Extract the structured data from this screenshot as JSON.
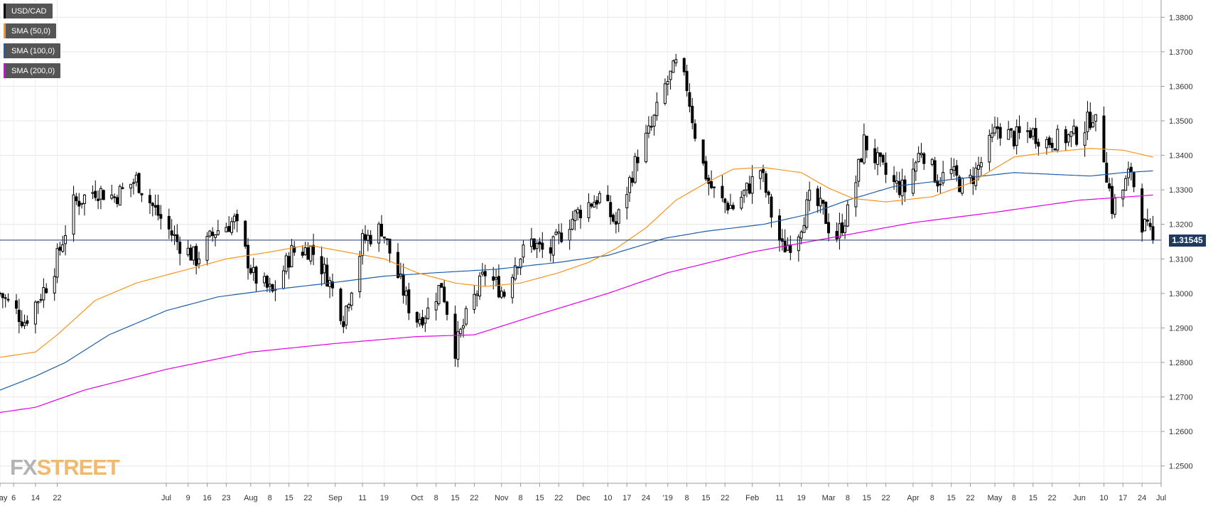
{
  "chart_data": {
    "type": "candlestick",
    "title": "",
    "symbol": "USD/CAD",
    "legend": {
      "placement": "top-left",
      "entries": [
        "USD/CAD",
        "SMA (50,0)",
        "SMA (100,0)",
        "SMA (200,0)"
      ]
    },
    "colors": {
      "up": "#ffffff",
      "down": "#000000",
      "sma50": "#f7941d",
      "sma100": "#1f5fa8",
      "sma200": "#e100e6",
      "last_line": "#1f3a5f"
    },
    "ylim": [
      1.245,
      1.385
    ],
    "y_ticks": [
      "1.2500",
      "1.2600",
      "1.2700",
      "1.2800",
      "1.2900",
      "1.3000",
      "1.3100",
      "1.3200",
      "1.3300",
      "1.3400",
      "1.3500",
      "1.3600",
      "1.3700",
      "1.3800"
    ],
    "x_range": [
      "2018-05-01",
      "2019-07-01"
    ],
    "x_ticks": [
      {
        "label": "May",
        "date": "2018-05-01"
      },
      {
        "label": "6",
        "date": "2018-05-06"
      },
      {
        "label": "14",
        "date": "2018-05-14"
      },
      {
        "label": "22",
        "date": "2018-05-22"
      },
      {
        "label": "Jul",
        "date": "2018-07-01"
      },
      {
        "label": "9",
        "date": "2018-07-09"
      },
      {
        "label": "16",
        "date": "2018-07-16"
      },
      {
        "label": "23",
        "date": "2018-07-23"
      },
      {
        "label": "Aug",
        "date": "2018-08-01"
      },
      {
        "label": "8",
        "date": "2018-08-08"
      },
      {
        "label": "15",
        "date": "2018-08-15"
      },
      {
        "label": "22",
        "date": "2018-08-22"
      },
      {
        "label": "Sep",
        "date": "2018-09-01"
      },
      {
        "label": "11",
        "date": "2018-09-11"
      },
      {
        "label": "19",
        "date": "2018-09-19"
      },
      {
        "label": "Oct",
        "date": "2018-10-01"
      },
      {
        "label": "8",
        "date": "2018-10-08"
      },
      {
        "label": "15",
        "date": "2018-10-15"
      },
      {
        "label": "22",
        "date": "2018-10-22"
      },
      {
        "label": "Nov",
        "date": "2018-11-01"
      },
      {
        "label": "8",
        "date": "2018-11-08"
      },
      {
        "label": "15",
        "date": "2018-11-15"
      },
      {
        "label": "22",
        "date": "2018-11-22"
      },
      {
        "label": "Dec",
        "date": "2018-12-01"
      },
      {
        "label": "10",
        "date": "2018-12-10"
      },
      {
        "label": "17",
        "date": "2018-12-17"
      },
      {
        "label": "24",
        "date": "2018-12-24"
      },
      {
        "label": "'19",
        "date": "2019-01-01"
      },
      {
        "label": "8",
        "date": "2019-01-08"
      },
      {
        "label": "15",
        "date": "2019-01-15"
      },
      {
        "label": "22",
        "date": "2019-01-22"
      },
      {
        "label": "Feb",
        "date": "2019-02-01"
      },
      {
        "label": "11",
        "date": "2019-02-11"
      },
      {
        "label": "19",
        "date": "2019-02-19"
      },
      {
        "label": "Mar",
        "date": "2019-03-01"
      },
      {
        "label": "8",
        "date": "2019-03-08"
      },
      {
        "label": "15",
        "date": "2019-03-15"
      },
      {
        "label": "22",
        "date": "2019-03-22"
      },
      {
        "label": "Apr",
        "date": "2019-04-01"
      },
      {
        "label": "8",
        "date": "2019-04-08"
      },
      {
        "label": "15",
        "date": "2019-04-15"
      },
      {
        "label": "22",
        "date": "2019-04-22"
      },
      {
        "label": "May",
        "date": "2019-05-01"
      },
      {
        "label": "8",
        "date": "2019-05-08"
      },
      {
        "label": "15",
        "date": "2019-05-15"
      },
      {
        "label": "22",
        "date": "2019-05-22"
      },
      {
        "label": "Jun",
        "date": "2019-06-01"
      },
      {
        "label": "10",
        "date": "2019-06-10"
      },
      {
        "label": "17",
        "date": "2019-06-17"
      },
      {
        "label": "24",
        "date": "2019-06-24"
      },
      {
        "label": "Jul",
        "date": "2019-07-01"
      }
    ],
    "last_price": {
      "value": 1.31545,
      "label": "1.31545"
    },
    "price_knots": [
      {
        "date": "2018-05-01",
        "close": 1.3
      },
      {
        "date": "2018-05-10",
        "close": 1.292
      },
      {
        "date": "2018-05-20",
        "close": 1.305
      },
      {
        "date": "2018-05-28",
        "close": 1.326
      },
      {
        "date": "2018-06-05",
        "close": 1.33
      },
      {
        "date": "2018-06-12",
        "close": 1.328
      },
      {
        "date": "2018-06-20",
        "close": 1.333
      },
      {
        "date": "2018-06-27",
        "close": 1.324
      },
      {
        "date": "2018-07-05",
        "close": 1.315
      },
      {
        "date": "2018-07-12",
        "close": 1.31
      },
      {
        "date": "2018-07-19",
        "close": 1.318
      },
      {
        "date": "2018-07-26",
        "close": 1.321
      },
      {
        "date": "2018-08-02",
        "close": 1.305
      },
      {
        "date": "2018-08-09",
        "close": 1.3
      },
      {
        "date": "2018-08-16",
        "close": 1.312
      },
      {
        "date": "2018-08-23",
        "close": 1.313
      },
      {
        "date": "2018-08-29",
        "close": 1.305
      },
      {
        "date": "2018-09-04",
        "close": 1.293
      },
      {
        "date": "2018-09-11",
        "close": 1.315
      },
      {
        "date": "2018-09-18",
        "close": 1.319
      },
      {
        "date": "2018-09-24",
        "close": 1.305
      },
      {
        "date": "2018-09-30",
        "close": 1.292
      },
      {
        "date": "2018-10-05",
        "close": 1.295
      },
      {
        "date": "2018-10-10",
        "close": 1.303
      },
      {
        "date": "2018-10-15",
        "close": 1.284
      },
      {
        "date": "2018-10-20",
        "close": 1.295
      },
      {
        "date": "2018-10-26",
        "close": 1.306
      },
      {
        "date": "2018-11-02",
        "close": 1.3
      },
      {
        "date": "2018-11-06",
        "close": 1.309
      },
      {
        "date": "2018-11-12",
        "close": 1.315
      },
      {
        "date": "2018-11-18",
        "close": 1.311
      },
      {
        "date": "2018-11-25",
        "close": 1.32
      },
      {
        "date": "2018-12-01",
        "close": 1.325
      },
      {
        "date": "2018-12-07",
        "close": 1.328
      },
      {
        "date": "2018-12-13",
        "close": 1.32
      },
      {
        "date": "2018-12-17",
        "close": 1.33
      },
      {
        "date": "2018-12-21",
        "close": 1.34
      },
      {
        "date": "2018-12-26",
        "close": 1.348
      },
      {
        "date": "2018-12-31",
        "close": 1.36
      },
      {
        "date": "2019-01-04",
        "close": 1.366
      },
      {
        "date": "2019-01-08",
        "close": 1.36
      },
      {
        "date": "2019-01-12",
        "close": 1.342
      },
      {
        "date": "2019-01-16",
        "close": 1.332
      },
      {
        "date": "2019-01-20",
        "close": 1.327
      },
      {
        "date": "2019-01-25",
        "close": 1.325
      },
      {
        "date": "2019-01-30",
        "close": 1.33
      },
      {
        "date": "2019-02-04",
        "close": 1.336
      },
      {
        "date": "2019-02-08",
        "close": 1.323
      },
      {
        "date": "2019-02-12",
        "close": 1.313
      },
      {
        "date": "2019-02-17",
        "close": 1.316
      },
      {
        "date": "2019-02-22",
        "close": 1.327
      },
      {
        "date": "2019-02-27",
        "close": 1.324
      },
      {
        "date": "2019-03-03",
        "close": 1.315
      },
      {
        "date": "2019-03-09",
        "close": 1.325
      },
      {
        "date": "2019-03-14",
        "close": 1.344
      },
      {
        "date": "2019-03-19",
        "close": 1.338
      },
      {
        "date": "2019-03-24",
        "close": 1.332
      },
      {
        "date": "2019-03-29",
        "close": 1.33
      },
      {
        "date": "2019-04-04",
        "close": 1.342
      },
      {
        "date": "2019-04-10",
        "close": 1.333
      },
      {
        "date": "2019-04-15",
        "close": 1.335
      },
      {
        "date": "2019-04-20",
        "close": 1.33
      },
      {
        "date": "2019-04-26",
        "close": 1.338
      },
      {
        "date": "2019-05-02",
        "close": 1.348
      },
      {
        "date": "2019-05-08",
        "close": 1.345
      },
      {
        "date": "2019-05-14",
        "close": 1.347
      },
      {
        "date": "2019-05-20",
        "close": 1.344
      },
      {
        "date": "2019-05-26",
        "close": 1.345
      },
      {
        "date": "2019-06-01",
        "close": 1.346
      },
      {
        "date": "2019-06-06",
        "close": 1.352
      },
      {
        "date": "2019-06-10",
        "close": 1.34
      },
      {
        "date": "2019-06-13",
        "close": 1.325
      },
      {
        "date": "2019-06-17",
        "close": 1.33
      },
      {
        "date": "2019-06-20",
        "close": 1.336
      },
      {
        "date": "2019-06-23",
        "close": 1.322
      },
      {
        "date": "2019-06-26",
        "close": 1.318
      },
      {
        "date": "2019-06-28",
        "close": 1.3155
      }
    ],
    "sma50_knots": [
      {
        "date": "2018-05-01",
        "value": 1.2815
      },
      {
        "date": "2018-05-14",
        "value": 1.283
      },
      {
        "date": "2018-05-22",
        "value": 1.288
      },
      {
        "date": "2018-06-05",
        "value": 1.298
      },
      {
        "date": "2018-06-20",
        "value": 1.303
      },
      {
        "date": "2018-07-09",
        "value": 1.307
      },
      {
        "date": "2018-07-23",
        "value": 1.31
      },
      {
        "date": "2018-08-08",
        "value": 1.312
      },
      {
        "date": "2018-08-22",
        "value": 1.314
      },
      {
        "date": "2018-09-05",
        "value": 1.312
      },
      {
        "date": "2018-09-19",
        "value": 1.31
      },
      {
        "date": "2018-10-01",
        "value": 1.306
      },
      {
        "date": "2018-10-15",
        "value": 1.303
      },
      {
        "date": "2018-10-26",
        "value": 1.302
      },
      {
        "date": "2018-11-08",
        "value": 1.303
      },
      {
        "date": "2018-11-22",
        "value": 1.306
      },
      {
        "date": "2018-12-03",
        "value": 1.309
      },
      {
        "date": "2018-12-13",
        "value": 1.313
      },
      {
        "date": "2018-12-24",
        "value": 1.319
      },
      {
        "date": "2019-01-04",
        "value": 1.327
      },
      {
        "date": "2019-01-15",
        "value": 1.332
      },
      {
        "date": "2019-01-25",
        "value": 1.336
      },
      {
        "date": "2019-02-05",
        "value": 1.3365
      },
      {
        "date": "2019-02-19",
        "value": 1.335
      },
      {
        "date": "2019-03-01",
        "value": 1.3305
      },
      {
        "date": "2019-03-10",
        "value": 1.3275
      },
      {
        "date": "2019-03-22",
        "value": 1.3265
      },
      {
        "date": "2019-04-08",
        "value": 1.328
      },
      {
        "date": "2019-04-22",
        "value": 1.332
      },
      {
        "date": "2019-05-08",
        "value": 1.3395
      },
      {
        "date": "2019-05-22",
        "value": 1.341
      },
      {
        "date": "2019-06-05",
        "value": 1.342
      },
      {
        "date": "2019-06-17",
        "value": 1.3415
      },
      {
        "date": "2019-06-28",
        "value": 1.3395
      }
    ],
    "sma100_knots": [
      {
        "date": "2018-05-01",
        "value": 1.272
      },
      {
        "date": "2018-05-14",
        "value": 1.276
      },
      {
        "date": "2018-05-25",
        "value": 1.28
      },
      {
        "date": "2018-06-10",
        "value": 1.288
      },
      {
        "date": "2018-07-01",
        "value": 1.295
      },
      {
        "date": "2018-07-20",
        "value": 1.299
      },
      {
        "date": "2018-08-08",
        "value": 1.301
      },
      {
        "date": "2018-08-30",
        "value": 1.303
      },
      {
        "date": "2018-09-19",
        "value": 1.305
      },
      {
        "date": "2018-10-08",
        "value": 1.306
      },
      {
        "date": "2018-10-30",
        "value": 1.307
      },
      {
        "date": "2018-11-22",
        "value": 1.309
      },
      {
        "date": "2018-12-10",
        "value": 1.311
      },
      {
        "date": "2018-12-31",
        "value": 1.316
      },
      {
        "date": "2019-01-15",
        "value": 1.318
      },
      {
        "date": "2019-02-05",
        "value": 1.32
      },
      {
        "date": "2019-02-22",
        "value": 1.323
      },
      {
        "date": "2019-03-08",
        "value": 1.327
      },
      {
        "date": "2019-03-25",
        "value": 1.331
      },
      {
        "date": "2019-04-15",
        "value": 1.333
      },
      {
        "date": "2019-05-08",
        "value": 1.335
      },
      {
        "date": "2019-05-22",
        "value": 1.3345
      },
      {
        "date": "2019-06-05",
        "value": 1.334
      },
      {
        "date": "2019-06-17",
        "value": 1.335
      },
      {
        "date": "2019-06-28",
        "value": 1.3355
      }
    ],
    "sma200_knots": [
      {
        "date": "2018-05-01",
        "value": 1.2655
      },
      {
        "date": "2018-05-14",
        "value": 1.267
      },
      {
        "date": "2018-06-01",
        "value": 1.272
      },
      {
        "date": "2018-07-01",
        "value": 1.278
      },
      {
        "date": "2018-08-01",
        "value": 1.283
      },
      {
        "date": "2018-09-01",
        "value": 1.2855
      },
      {
        "date": "2018-10-01",
        "value": 1.2875
      },
      {
        "date": "2018-10-22",
        "value": 1.288
      },
      {
        "date": "2018-11-15",
        "value": 1.294
      },
      {
        "date": "2018-12-10",
        "value": 1.3
      },
      {
        "date": "2019-01-01",
        "value": 1.306
      },
      {
        "date": "2019-02-01",
        "value": 1.312
      },
      {
        "date": "2019-03-01",
        "value": 1.316
      },
      {
        "date": "2019-04-01",
        "value": 1.3205
      },
      {
        "date": "2019-05-01",
        "value": 1.3235
      },
      {
        "date": "2019-06-01",
        "value": 1.327
      },
      {
        "date": "2019-06-28",
        "value": 1.3285
      }
    ]
  },
  "branding": {
    "logo_part1": "FX",
    "logo_part2": "STREET"
  }
}
